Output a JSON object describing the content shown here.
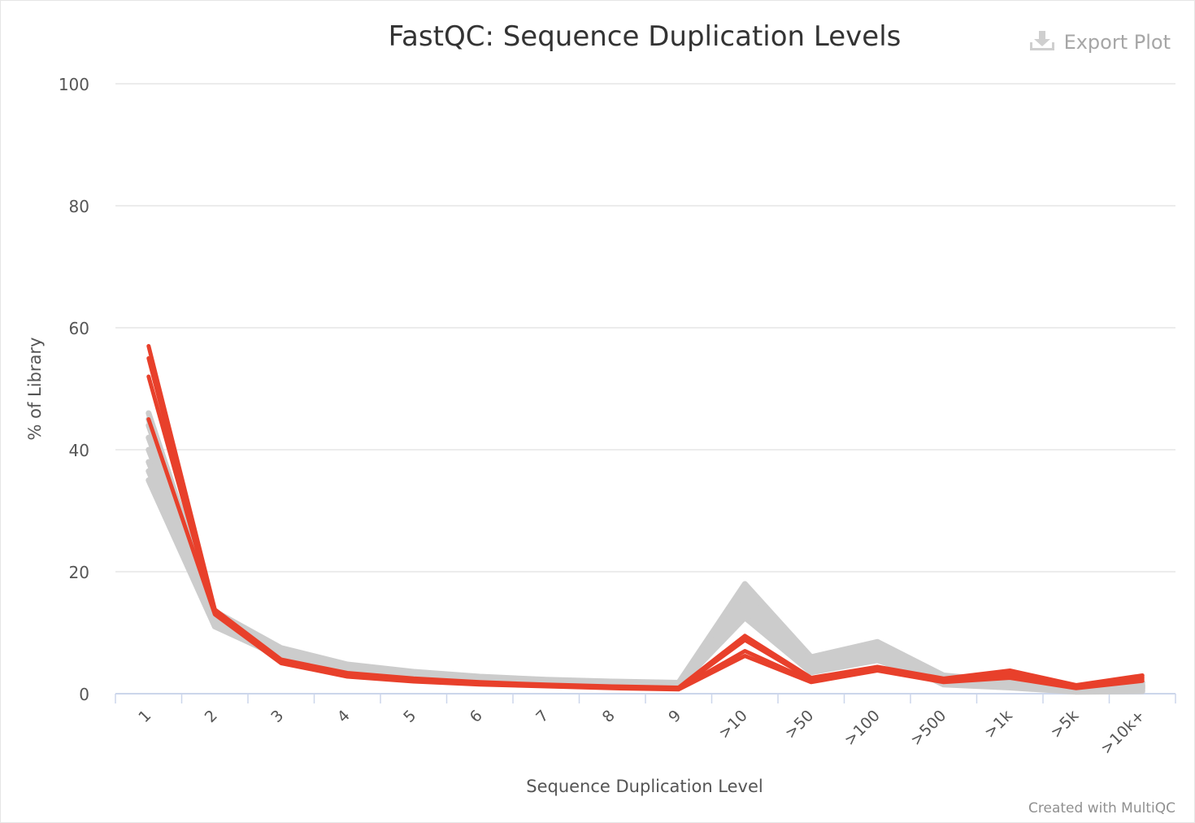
{
  "title": "FastQC: Sequence Duplication Levels",
  "export_button": {
    "label": "Export Plot",
    "icon": "download-icon"
  },
  "credit": "Created with MultiQC",
  "chart_data": {
    "type": "line",
    "title": "FastQC: Sequence Duplication Levels",
    "xlabel": "Sequence Duplication Level",
    "ylabel": "% of Library",
    "ylim": [
      0,
      100
    ],
    "yticks": [
      0,
      20,
      40,
      60,
      80,
      100
    ],
    "grid": true,
    "categories": [
      "1",
      "2",
      "3",
      "4",
      "5",
      "6",
      "7",
      "8",
      "9",
      ">10",
      ">50",
      ">100",
      ">500",
      ">1k",
      ">5k",
      ">10k+"
    ],
    "colors": {
      "fail": "#e8402b",
      "pass": "#cccccc"
    },
    "series": [
      {
        "status": "pass",
        "values": [
          46.0,
          13.5,
          7.5,
          4.8,
          3.6,
          2.8,
          2.3,
          2.0,
          1.8,
          18.0,
          6.0,
          8.5,
          3.0,
          2.0,
          1.0,
          1.0
        ]
      },
      {
        "status": "pass",
        "values": [
          44.0,
          13.0,
          7.2,
          4.6,
          3.4,
          2.7,
          2.2,
          1.9,
          1.7,
          17.0,
          5.5,
          8.0,
          2.8,
          1.9,
          0.9,
          1.2
        ]
      },
      {
        "status": "pass",
        "values": [
          42.0,
          12.6,
          7.0,
          4.4,
          3.3,
          2.6,
          2.1,
          1.8,
          1.6,
          16.0,
          5.0,
          7.5,
          2.6,
          1.8,
          0.8,
          1.5
        ]
      },
      {
        "status": "pass",
        "values": [
          40.0,
          12.2,
          6.8,
          4.3,
          3.2,
          2.5,
          2.0,
          1.7,
          1.5,
          15.0,
          4.6,
          7.0,
          2.4,
          1.6,
          0.7,
          1.8
        ]
      },
      {
        "status": "pass",
        "values": [
          38.0,
          11.8,
          6.6,
          4.1,
          3.0,
          2.4,
          1.9,
          1.6,
          1.4,
          14.0,
          4.2,
          6.5,
          2.2,
          1.5,
          0.6,
          1.3
        ]
      },
      {
        "status": "pass",
        "values": [
          36.5,
          11.3,
          6.3,
          3.9,
          2.9,
          2.3,
          1.8,
          1.5,
          1.3,
          13.0,
          3.8,
          6.0,
          2.0,
          1.3,
          0.5,
          0.9
        ]
      },
      {
        "status": "pass",
        "values": [
          35.0,
          11.0,
          6.0,
          3.7,
          2.7,
          2.1,
          1.7,
          1.4,
          1.2,
          12.5,
          3.5,
          5.5,
          1.8,
          1.2,
          0.4,
          0.6
        ]
      },
      {
        "status": "pass",
        "values": [
          45.0,
          12.0,
          6.5,
          4.2,
          3.1,
          2.5,
          2.0,
          1.6,
          1.4,
          14.5,
          4.8,
          6.8,
          1.5,
          1.0,
          0.3,
          0.4
        ]
      },
      {
        "status": "fail",
        "values": [
          57.0,
          13.8,
          5.6,
          3.4,
          2.5,
          1.9,
          1.5,
          1.2,
          1.0,
          9.5,
          2.6,
          4.4,
          2.5,
          3.8,
          1.4,
          3.0
        ]
      },
      {
        "status": "fail",
        "values": [
          55.0,
          13.5,
          5.4,
          3.2,
          2.3,
          1.8,
          1.4,
          1.1,
          0.9,
          8.8,
          2.4,
          4.2,
          2.3,
          3.4,
          1.3,
          2.7
        ]
      },
      {
        "status": "fail",
        "values": [
          52.0,
          13.2,
          5.2,
          3.0,
          2.1,
          1.6,
          1.3,
          1.0,
          0.8,
          7.0,
          2.1,
          4.0,
          2.1,
          3.0,
          1.1,
          2.4
        ]
      },
      {
        "status": "fail",
        "values": [
          45.0,
          13.0,
          5.0,
          2.8,
          2.0,
          1.5,
          1.2,
          0.9,
          0.7,
          6.2,
          1.9,
          3.8,
          1.9,
          2.6,
          0.9,
          2.1
        ]
      }
    ]
  }
}
